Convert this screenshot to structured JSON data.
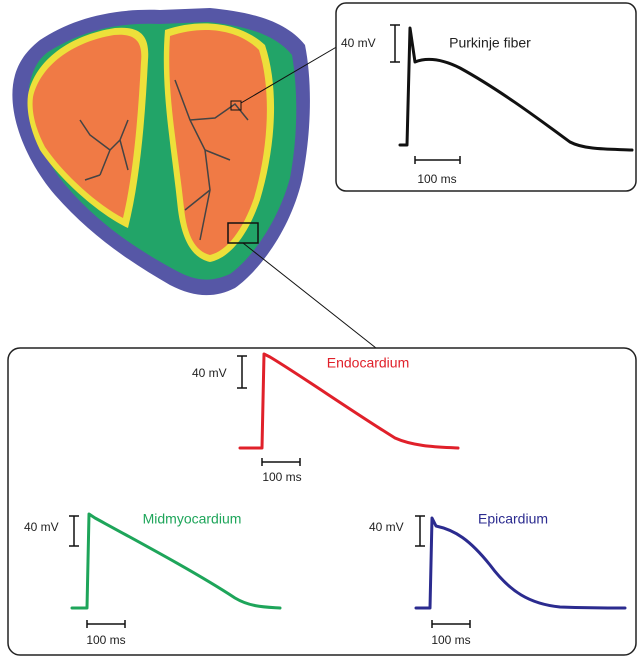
{
  "purkinje": {
    "title": "Purkinje fiber",
    "voltage_scale": "40 mV",
    "time_scale": "100 ms"
  },
  "endocardium": {
    "title": "Endocardium",
    "voltage_scale": "40 mV",
    "time_scale": "100 ms"
  },
  "midmyocardium": {
    "title": "Midmyocardium",
    "voltage_scale": "40 mV",
    "time_scale": "100 ms"
  },
  "epicardium": {
    "title": "Epicardium",
    "voltage_scale": "40 mV",
    "time_scale": "100 ms"
  }
}
